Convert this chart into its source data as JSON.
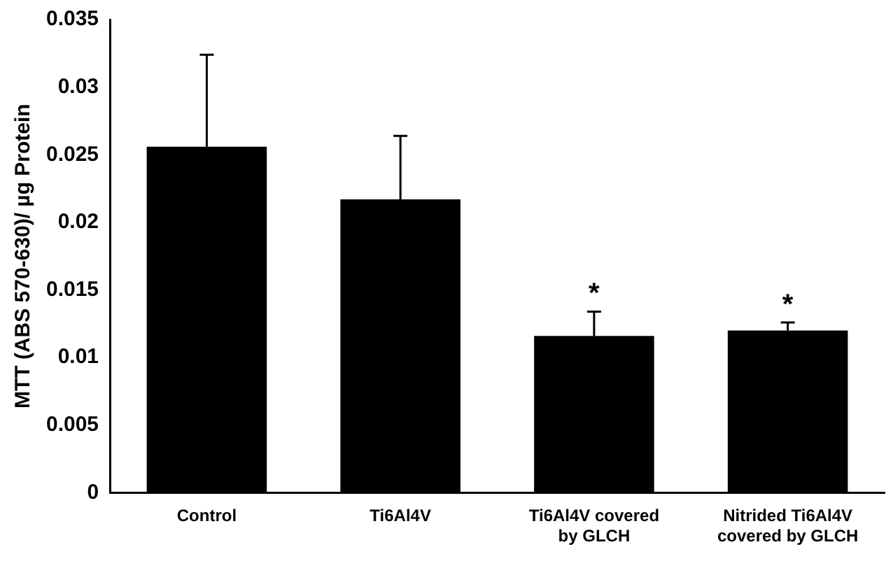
{
  "chart_data": {
    "type": "bar",
    "ylabel": "MTT (ABS 570-630)/ µg Protein",
    "categories": [
      "Control",
      "Ti6Al4V",
      "Ti6Al4V covered by GLCH",
      "Nitrided Ti6Al4V covered by GLCH"
    ],
    "values": [
      0.0256,
      0.0217,
      0.0116,
      0.012
    ],
    "errors": [
      [
        0.0256,
        0.0324
      ],
      [
        0.0217,
        0.0264
      ],
      [
        0.0116,
        0.0134
      ],
      [
        0.012,
        0.0126
      ]
    ],
    "color": "#000000",
    "ylim": [
      0,
      0.035
    ],
    "yticks": [
      0,
      0.005,
      0.01,
      0.015,
      0.02,
      0.025,
      0.03,
      0.035
    ],
    "grid": false,
    "legend": false,
    "annotations": [
      {
        "text": "*",
        "x": "Ti6Al4V covered by GLCH",
        "y": 0.0134
      },
      {
        "text": "*",
        "x": "Nitrided Ti6Al4V covered by GLCH",
        "y": 0.0126
      }
    ]
  }
}
